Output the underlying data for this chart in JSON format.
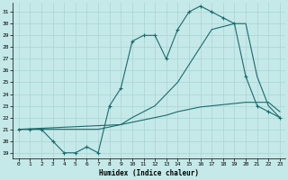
{
  "xlabel": "Humidex (Indice chaleur)",
  "bg_color": "#c5e8e8",
  "line_color": "#1a6b6b",
  "grid_color": "#aad4d4",
  "ylim": [
    18.5,
    31.8
  ],
  "xlim": [
    -0.5,
    23.5
  ],
  "yticks": [
    19,
    20,
    21,
    22,
    23,
    24,
    25,
    26,
    27,
    28,
    29,
    30,
    31
  ],
  "xticks": [
    0,
    1,
    2,
    3,
    4,
    5,
    6,
    7,
    8,
    9,
    10,
    11,
    12,
    13,
    14,
    15,
    16,
    17,
    18,
    19,
    20,
    21,
    22,
    23
  ],
  "line1_x": [
    0,
    1,
    2,
    3,
    4,
    5,
    6,
    7,
    8,
    9,
    10,
    11,
    12,
    13,
    14,
    15,
    16,
    17,
    18,
    19,
    20,
    21,
    22,
    23
  ],
  "line1_y": [
    21.0,
    21.0,
    21.0,
    20.0,
    19.0,
    19.0,
    19.5,
    19.0,
    23.0,
    24.5,
    28.5,
    29.0,
    29.0,
    27.0,
    29.5,
    31.0,
    31.5,
    31.0,
    30.5,
    30.0,
    25.5,
    23.0,
    22.5,
    22.0
  ],
  "line2_x": [
    0,
    1,
    2,
    3,
    4,
    5,
    6,
    7,
    8,
    9,
    10,
    11,
    12,
    13,
    14,
    15,
    16,
    17,
    18,
    19,
    20,
    21,
    22,
    23
  ],
  "line2_y": [
    21.0,
    21.0,
    21.0,
    21.0,
    21.0,
    21.0,
    21.0,
    21.0,
    21.2,
    21.4,
    21.6,
    21.8,
    22.0,
    22.2,
    22.5,
    22.7,
    22.9,
    23.0,
    23.1,
    23.2,
    23.3,
    23.3,
    23.3,
    22.5
  ],
  "line3_x": [
    0,
    9,
    10,
    11,
    12,
    13,
    14,
    15,
    16,
    17,
    19,
    20,
    21,
    22,
    23
  ],
  "line3_y": [
    21.0,
    21.4,
    22.0,
    22.5,
    23.0,
    24.0,
    25.0,
    26.5,
    28.0,
    29.5,
    30.0,
    30.0,
    25.5,
    23.0,
    22.0
  ]
}
